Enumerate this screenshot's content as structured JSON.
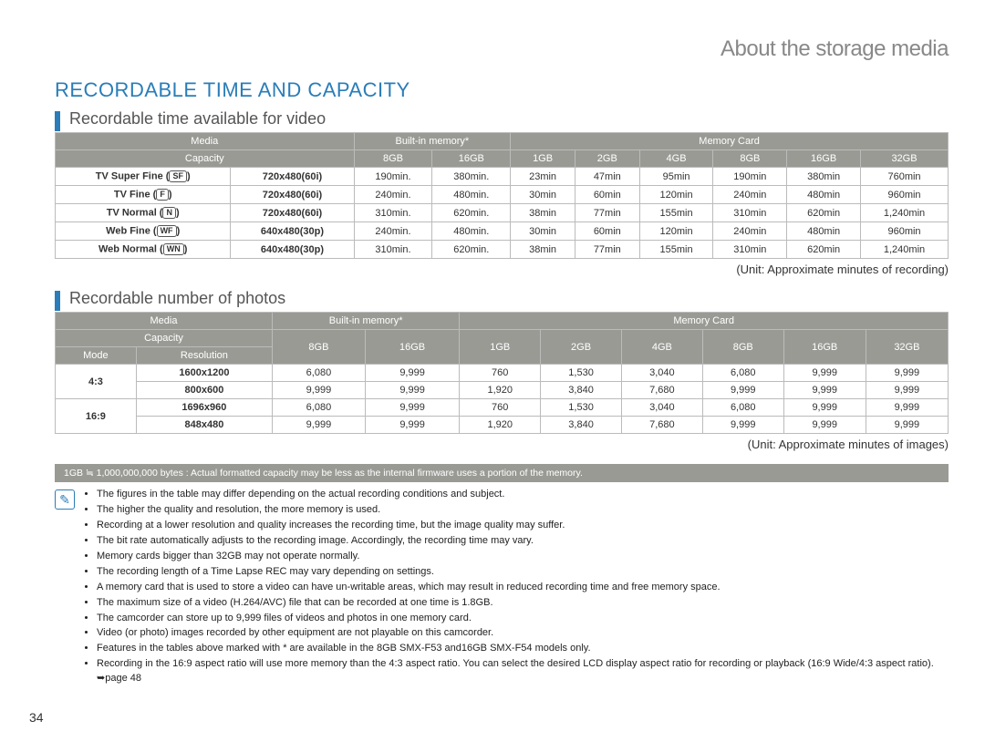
{
  "header": "About the storage media",
  "main_title": "RECORDABLE TIME AND CAPACITY",
  "section1": {
    "title": "Recordable time available for video",
    "unit_note": "(Unit: Approximate minutes of recording)",
    "head": {
      "media": "Media",
      "builtin": "Built-in memory*",
      "card": "Memory Card",
      "capacity": "Capacity",
      "c8": "8GB",
      "c16": "16GB",
      "c1": "1GB",
      "c2": "2GB",
      "c4": "4GB",
      "c8b": "8GB",
      "c16b": "16GB",
      "c32": "32GB"
    },
    "rows": [
      {
        "label": "TV Super Fine",
        "icon": "SF",
        "res": "720x480(60i)",
        "v": [
          "190min.",
          "380min.",
          "23min",
          "47min",
          "95min",
          "190min",
          "380min",
          "760min"
        ]
      },
      {
        "label": "TV Fine",
        "icon": "F",
        "res": "720x480(60i)",
        "v": [
          "240min.",
          "480min.",
          "30min",
          "60min",
          "120min",
          "240min",
          "480min",
          "960min"
        ]
      },
      {
        "label": "TV Normal",
        "icon": "N",
        "res": "720x480(60i)",
        "v": [
          "310min.",
          "620min.",
          "38min",
          "77min",
          "155min",
          "310min",
          "620min",
          "1,240min"
        ]
      },
      {
        "label": "Web Fine",
        "icon": "WF",
        "res": "640x480(30p)",
        "v": [
          "240min.",
          "480min.",
          "30min",
          "60min",
          "120min",
          "240min",
          "480min",
          "960min"
        ]
      },
      {
        "label": "Web Normal",
        "icon": "WN",
        "res": "640x480(30p)",
        "v": [
          "310min.",
          "620min.",
          "38min",
          "77min",
          "155min",
          "310min",
          "620min",
          "1,240min"
        ]
      }
    ]
  },
  "section2": {
    "title": "Recordable number of photos",
    "unit_note": "(Unit: Approximate minutes of images)",
    "head": {
      "media": "Media",
      "builtin": "Built-in memory*",
      "card": "Memory Card",
      "capacity": "Capacity",
      "mode": "Mode",
      "resolution": "Resolution",
      "c8": "8GB",
      "c16": "16GB",
      "c1": "1GB",
      "c2": "2GB",
      "c4": "4GB",
      "c8b": "8GB",
      "c16b": "16GB",
      "c32": "32GB"
    },
    "rows": [
      {
        "mode": "4:3",
        "res": "1600x1200",
        "v": [
          "6,080",
          "9,999",
          "760",
          "1,530",
          "3,040",
          "6,080",
          "9,999",
          "9,999"
        ]
      },
      {
        "mode": "",
        "res": "800x600",
        "v": [
          "9,999",
          "9,999",
          "1,920",
          "3,840",
          "7,680",
          "9,999",
          "9,999",
          "9,999"
        ]
      },
      {
        "mode": "16:9",
        "res": "1696x960",
        "v": [
          "6,080",
          "9,999",
          "760",
          "1,530",
          "3,040",
          "6,080",
          "9,999",
          "9,999"
        ]
      },
      {
        "mode": "",
        "res": "848x480",
        "v": [
          "9,999",
          "9,999",
          "1,920",
          "3,840",
          "7,680",
          "9,999",
          "9,999",
          "9,999"
        ]
      }
    ]
  },
  "gray_note": "1GB ≒ 1,000,000,000 bytes : Actual formatted capacity may be less as the internal firmware uses a portion of the memory.",
  "notes": [
    "The figures in the table may differ depending on the actual recording conditions and subject.",
    "The higher the quality and resolution, the more memory is used.",
    "Recording at a lower resolution and quality increases the recording time, but the image quality may suffer.",
    "The bit rate automatically adjusts to the recording image. Accordingly, the recording time may vary.",
    "Memory cards bigger than 32GB may not operate normally.",
    "The recording length of a Time Lapse REC may vary depending on settings.",
    "A memory card that is used to store a video can have un-writable areas, which may result in reduced recording time and free memory space.",
    "The maximum size of a video (H.264/AVC) file that can be recorded at one time is 1.8GB.",
    "The camcorder can store up to 9,999 files of videos and photos in one memory card.",
    "Video (or photo) images recorded by other equipment are not playable on this camcorder.",
    "Features in the tables above marked with * are available in the 8GB SMX-F53 and16GB SMX-F54 models only.",
    "Recording in the 16:9 aspect ratio will use more memory than the 4:3 aspect ratio. You can select the desired LCD display aspect ratio for recording or playback (16:9 Wide/4:3 aspect ratio). ➥page 48"
  ],
  "page_number": "34",
  "note_icon_glyph": "✎"
}
